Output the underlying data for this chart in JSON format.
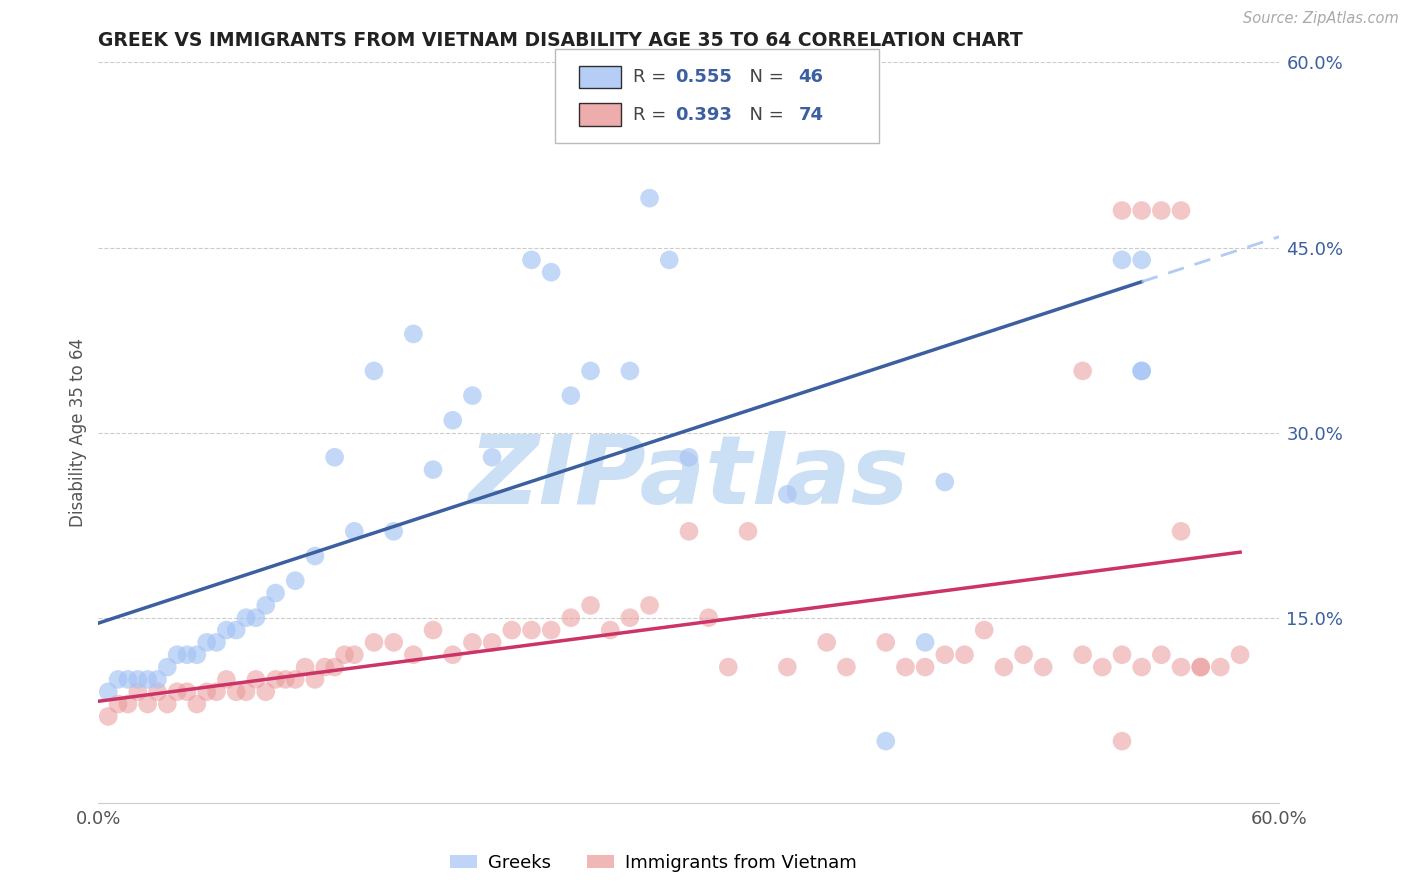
{
  "title": "GREEK VS IMMIGRANTS FROM VIETNAM DISABILITY AGE 35 TO 64 CORRELATION CHART",
  "source": "Source: ZipAtlas.com",
  "ylabel": "Disability Age 35 to 64",
  "xlim": [
    0.0,
    0.6
  ],
  "ylim": [
    0.0,
    0.6
  ],
  "blue_R": 0.555,
  "blue_N": 46,
  "pink_R": 0.393,
  "pink_N": 74,
  "blue_color": "#a4c2f4",
  "pink_color": "#ea9999",
  "blue_line_color": "#3c5fa0",
  "pink_line_color": "#cc3366",
  "blue_dash_color": "#a4c2f4",
  "watermark_color": "#cce0f5",
  "legend_text_color": "#3c5fa0",
  "legend_label1": "Greeks",
  "legend_label2": "Immigrants from Vietnam",
  "grid_color": "#cccccc",
  "blue_x": [
    0.005,
    0.01,
    0.015,
    0.02,
    0.025,
    0.03,
    0.035,
    0.04,
    0.045,
    0.05,
    0.055,
    0.06,
    0.065,
    0.07,
    0.075,
    0.08,
    0.085,
    0.09,
    0.1,
    0.11,
    0.12,
    0.13,
    0.14,
    0.15,
    0.16,
    0.17,
    0.18,
    0.19,
    0.2,
    0.22,
    0.23,
    0.24,
    0.25,
    0.27,
    0.28,
    0.29,
    0.3,
    0.31,
    0.35,
    0.4,
    0.42,
    0.43,
    0.52,
    0.53,
    0.53,
    0.53
  ],
  "blue_y": [
    0.09,
    0.1,
    0.1,
    0.1,
    0.1,
    0.1,
    0.11,
    0.12,
    0.12,
    0.12,
    0.13,
    0.13,
    0.14,
    0.14,
    0.15,
    0.15,
    0.16,
    0.17,
    0.18,
    0.2,
    0.28,
    0.22,
    0.35,
    0.22,
    0.38,
    0.27,
    0.31,
    0.33,
    0.28,
    0.44,
    0.43,
    0.33,
    0.35,
    0.35,
    0.49,
    0.44,
    0.28,
    0.56,
    0.25,
    0.05,
    0.13,
    0.26,
    0.44,
    0.35,
    0.44,
    0.35
  ],
  "pink_x": [
    0.005,
    0.01,
    0.015,
    0.02,
    0.025,
    0.03,
    0.035,
    0.04,
    0.045,
    0.05,
    0.055,
    0.06,
    0.065,
    0.07,
    0.075,
    0.08,
    0.085,
    0.09,
    0.095,
    0.1,
    0.105,
    0.11,
    0.115,
    0.12,
    0.125,
    0.13,
    0.14,
    0.15,
    0.16,
    0.17,
    0.18,
    0.19,
    0.2,
    0.21,
    0.22,
    0.23,
    0.24,
    0.25,
    0.26,
    0.27,
    0.28,
    0.3,
    0.31,
    0.32,
    0.33,
    0.35,
    0.37,
    0.38,
    0.4,
    0.41,
    0.42,
    0.43,
    0.44,
    0.45,
    0.46,
    0.47,
    0.48,
    0.5,
    0.52,
    0.53,
    0.54,
    0.55,
    0.55,
    0.56,
    0.57,
    0.58,
    0.5,
    0.51,
    0.52,
    0.54,
    0.55,
    0.56,
    0.52,
    0.53
  ],
  "pink_y": [
    0.07,
    0.08,
    0.08,
    0.09,
    0.08,
    0.09,
    0.08,
    0.09,
    0.09,
    0.08,
    0.09,
    0.09,
    0.1,
    0.09,
    0.09,
    0.1,
    0.09,
    0.1,
    0.1,
    0.1,
    0.11,
    0.1,
    0.11,
    0.11,
    0.12,
    0.12,
    0.13,
    0.13,
    0.12,
    0.14,
    0.12,
    0.13,
    0.13,
    0.14,
    0.14,
    0.14,
    0.15,
    0.16,
    0.14,
    0.15,
    0.16,
    0.22,
    0.15,
    0.11,
    0.22,
    0.11,
    0.13,
    0.11,
    0.13,
    0.11,
    0.11,
    0.12,
    0.12,
    0.14,
    0.11,
    0.12,
    0.11,
    0.12,
    0.12,
    0.11,
    0.48,
    0.22,
    0.48,
    0.11,
    0.11,
    0.12,
    0.35,
    0.11,
    0.05,
    0.12,
    0.11,
    0.11,
    0.48,
    0.48
  ]
}
